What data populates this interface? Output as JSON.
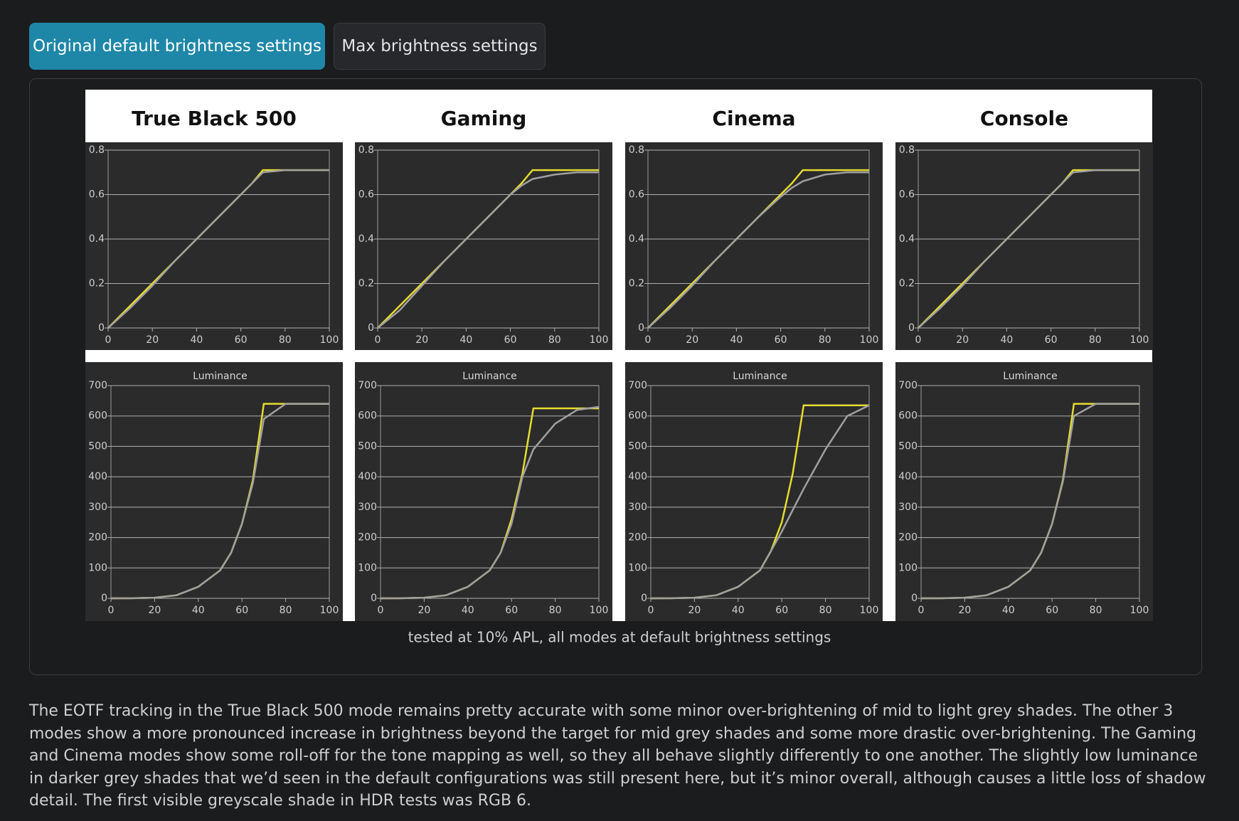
{
  "tabs": [
    "Original default brightness settings",
    "Max brightness settings"
  ],
  "panel_titles": [
    "True Black 500",
    "Gaming",
    "Cinema",
    "Console"
  ],
  "caption": "tested at 10% APL, all modes at default brightness settings",
  "paragraph": "The EOTF tracking in the True Black 500 mode remains pretty accurate with some minor over-brightening of mid to light grey shades. The other 3 modes show a more pronounced increase in brightness beyond the target for mid grey shades and some more drastic over-brightening. The Gaming and Cinema modes show some roll-off for the tone mapping as well, so they all behave slightly differently to one another. The slightly low luminance in darker grey shades that we’d seen in the default configurations was still present here, but it’s minor overall, although causes a little loss of shadow detail. The first visible greyscale shade in HDR tests was RGB 6.",
  "chart_data": [
    {
      "type": "line",
      "x": [
        0,
        10,
        20,
        30,
        40,
        50,
        60,
        65,
        70,
        80,
        90,
        100
      ],
      "xlim": [
        0,
        100
      ],
      "xticks": [
        0,
        20,
        40,
        60,
        80,
        100
      ],
      "ylim": [
        0,
        0.8
      ],
      "yticks": [
        0,
        0.2,
        0.4,
        0.6,
        0.8
      ],
      "grid": true,
      "series": [
        {
          "color": "#e6dc30",
          "values": [
            0,
            0.1,
            0.2,
            0.3,
            0.4,
            0.5,
            0.6,
            0.65,
            0.71,
            0.71,
            0.71,
            0.71
          ]
        },
        {
          "color": "#a0a0a0",
          "values": [
            0,
            0.09,
            0.19,
            0.3,
            0.4,
            0.5,
            0.6,
            0.65,
            0.7,
            0.71,
            0.71,
            0.71
          ]
        }
      ]
    },
    {
      "type": "line",
      "x": [
        0,
        10,
        20,
        30,
        40,
        50,
        60,
        65,
        70,
        80,
        90,
        100
      ],
      "xlim": [
        0,
        100
      ],
      "xticks": [
        0,
        20,
        40,
        60,
        80,
        100
      ],
      "ylim": [
        0,
        0.8
      ],
      "yticks": [
        0,
        0.2,
        0.4,
        0.6,
        0.8
      ],
      "grid": true,
      "series": [
        {
          "color": "#e6dc30",
          "values": [
            0,
            0.1,
            0.2,
            0.3,
            0.4,
            0.5,
            0.6,
            0.65,
            0.71,
            0.71,
            0.71,
            0.71
          ]
        },
        {
          "color": "#a0a0a0",
          "values": [
            0,
            0.08,
            0.19,
            0.3,
            0.4,
            0.5,
            0.6,
            0.64,
            0.67,
            0.69,
            0.7,
            0.7
          ]
        }
      ]
    },
    {
      "type": "line",
      "x": [
        0,
        10,
        20,
        30,
        40,
        50,
        60,
        65,
        70,
        80,
        90,
        100
      ],
      "xlim": [
        0,
        100
      ],
      "xticks": [
        0,
        20,
        40,
        60,
        80,
        100
      ],
      "ylim": [
        0,
        0.8
      ],
      "yticks": [
        0,
        0.2,
        0.4,
        0.6,
        0.8
      ],
      "grid": true,
      "series": [
        {
          "color": "#e6dc30",
          "values": [
            0,
            0.1,
            0.2,
            0.3,
            0.4,
            0.5,
            0.6,
            0.65,
            0.71,
            0.71,
            0.71,
            0.71
          ]
        },
        {
          "color": "#a0a0a0",
          "values": [
            0,
            0.09,
            0.19,
            0.3,
            0.4,
            0.5,
            0.59,
            0.63,
            0.66,
            0.69,
            0.7,
            0.7
          ]
        }
      ]
    },
    {
      "type": "line",
      "x": [
        0,
        10,
        20,
        30,
        40,
        50,
        60,
        65,
        70,
        80,
        90,
        100
      ],
      "xlim": [
        0,
        100
      ],
      "xticks": [
        0,
        20,
        40,
        60,
        80,
        100
      ],
      "ylim": [
        0,
        0.8
      ],
      "yticks": [
        0,
        0.2,
        0.4,
        0.6,
        0.8
      ],
      "grid": true,
      "series": [
        {
          "color": "#e6dc30",
          "values": [
            0,
            0.1,
            0.2,
            0.3,
            0.4,
            0.5,
            0.6,
            0.65,
            0.71,
            0.71,
            0.71,
            0.71
          ]
        },
        {
          "color": "#a0a0a0",
          "values": [
            0,
            0.09,
            0.19,
            0.3,
            0.4,
            0.5,
            0.6,
            0.65,
            0.7,
            0.71,
            0.71,
            0.71
          ]
        }
      ]
    },
    {
      "type": "line",
      "title": "Luminance",
      "x": [
        0,
        10,
        20,
        30,
        40,
        50,
        55,
        60,
        65,
        70,
        80,
        90,
        100
      ],
      "xlim": [
        0,
        100
      ],
      "xticks": [
        0,
        20,
        40,
        60,
        80,
        100
      ],
      "ylim": [
        0,
        700
      ],
      "yticks": [
        0,
        100,
        200,
        300,
        400,
        500,
        600,
        700
      ],
      "grid": true,
      "series": [
        {
          "color": "#e6dc30",
          "values": [
            0,
            0.3,
            2,
            10,
            38,
            92,
            150,
            245,
            390,
            640,
            640,
            640,
            640
          ]
        },
        {
          "color": "#a0a0a0",
          "values": [
            0,
            0.3,
            2,
            10,
            38,
            92,
            150,
            245,
            380,
            590,
            640,
            640,
            640
          ]
        }
      ]
    },
    {
      "type": "line",
      "title": "Luminance",
      "x": [
        0,
        10,
        20,
        30,
        40,
        50,
        55,
        60,
        65,
        70,
        80,
        90,
        100
      ],
      "xlim": [
        0,
        100
      ],
      "xticks": [
        0,
        20,
        40,
        60,
        80,
        100
      ],
      "ylim": [
        0,
        700
      ],
      "yticks": [
        0,
        100,
        200,
        300,
        400,
        500,
        600,
        700
      ],
      "grid": true,
      "series": [
        {
          "color": "#e6dc30",
          "values": [
            0,
            0.3,
            2,
            10,
            38,
            92,
            150,
            260,
            410,
            625,
            625,
            625,
            625
          ]
        },
        {
          "color": "#a0a0a0",
          "values": [
            0,
            0.3,
            2,
            10,
            38,
            92,
            150,
            245,
            400,
            490,
            575,
            620,
            630
          ]
        }
      ]
    },
    {
      "type": "line",
      "title": "Luminance",
      "x": [
        0,
        10,
        20,
        30,
        40,
        50,
        55,
        60,
        65,
        70,
        80,
        90,
        100
      ],
      "xlim": [
        0,
        100
      ],
      "xticks": [
        0,
        20,
        40,
        60,
        80,
        100
      ],
      "ylim": [
        0,
        700
      ],
      "yticks": [
        0,
        100,
        200,
        300,
        400,
        500,
        600,
        700
      ],
      "grid": true,
      "series": [
        {
          "color": "#e6dc30",
          "values": [
            0,
            0.3,
            2,
            10,
            38,
            92,
            155,
            250,
            410,
            635,
            635,
            635,
            635
          ]
        },
        {
          "color": "#a0a0a0",
          "values": [
            0,
            0.3,
            2,
            10,
            38,
            92,
            155,
            220,
            290,
            360,
            490,
            600,
            635
          ]
        }
      ]
    },
    {
      "type": "line",
      "title": "Luminance",
      "x": [
        0,
        10,
        20,
        30,
        40,
        50,
        55,
        60,
        65,
        70,
        80,
        90,
        100
      ],
      "xlim": [
        0,
        100
      ],
      "xticks": [
        0,
        20,
        40,
        60,
        80,
        100
      ],
      "ylim": [
        0,
        700
      ],
      "yticks": [
        0,
        100,
        200,
        300,
        400,
        500,
        600,
        700
      ],
      "grid": true,
      "series": [
        {
          "color": "#e6dc30",
          "values": [
            0,
            0.3,
            2,
            10,
            38,
            92,
            150,
            245,
            390,
            640,
            640,
            640,
            640
          ]
        },
        {
          "color": "#a0a0a0",
          "values": [
            0,
            0.3,
            2,
            10,
            38,
            92,
            150,
            245,
            385,
            600,
            640,
            640,
            640
          ]
        }
      ]
    }
  ]
}
